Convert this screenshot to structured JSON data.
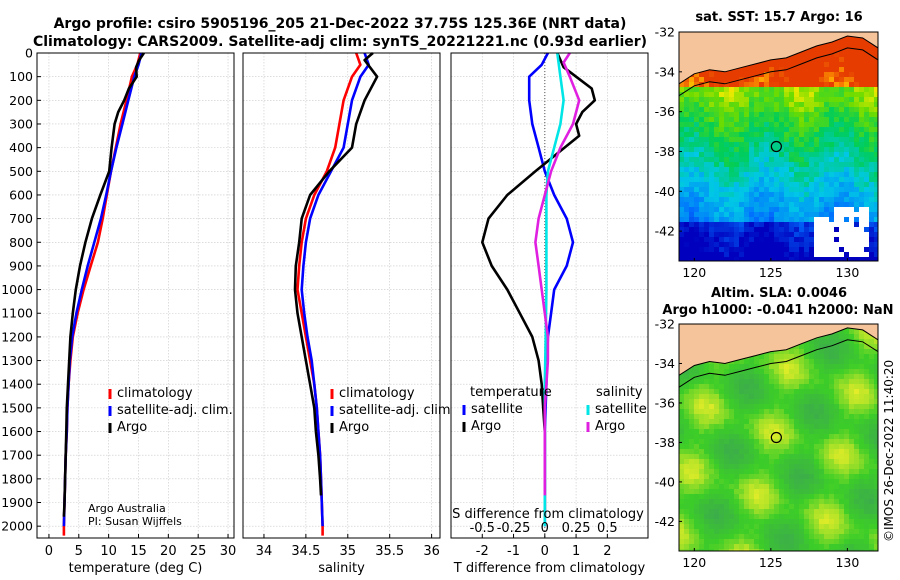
{
  "header": {
    "line1": "Argo profile: csiro 5905196_205 21-Dec-2022 37.75S 125.36E (NRT data)",
    "line2": "Climatology: CARS2009. Satellite-adj clim: synTS_20221221.nc (0.93d earlier)"
  },
  "credits": {
    "org": "Argo Australia",
    "pi": "PI: Susan Wijffels",
    "copyright": "©IMOS 26-Dec-2022 11:40:20"
  },
  "colors": {
    "climatology": "#ff0000",
    "satellite": "#0000ff",
    "argo": "#000000",
    "sal_sat": "#00e5e5",
    "sal_argo": "#e020e0",
    "land": "#f5c49a"
  },
  "chart_data": [
    {
      "type": "line",
      "id": "temperature",
      "xlabel": "temperature (deg C)",
      "xlim": [
        -2,
        31
      ],
      "xticks": [
        0,
        5,
        10,
        15,
        20,
        25,
        30
      ],
      "ylim": [
        0,
        2050
      ],
      "yticks": [
        0,
        100,
        200,
        300,
        400,
        500,
        600,
        700,
        800,
        900,
        1000,
        1100,
        1200,
        1300,
        1400,
        1500,
        1600,
        1700,
        1800,
        1900,
        2000
      ],
      "yreverse": true,
      "legend": [
        "climatology",
        "satellite-adj. clim.",
        "Argo"
      ],
      "series": [
        {
          "name": "climatology",
          "color": "#ff0000",
          "points": [
            [
              15.3,
              0
            ],
            [
              14.8,
              50
            ],
            [
              13.9,
              100
            ],
            [
              13.0,
              200
            ],
            [
              12.0,
              300
            ],
            [
              11.2,
              400
            ],
            [
              10.4,
              500
            ],
            [
              9.7,
              600
            ],
            [
              9.0,
              700
            ],
            [
              8.2,
              800
            ],
            [
              7.0,
              900
            ],
            [
              5.8,
              1000
            ],
            [
              4.8,
              1100
            ],
            [
              4.0,
              1200
            ],
            [
              3.6,
              1300
            ],
            [
              3.3,
              1400
            ],
            [
              3.1,
              1500
            ],
            [
              3.0,
              1600
            ],
            [
              2.8,
              1700
            ],
            [
              2.7,
              1800
            ],
            [
              2.6,
              1900
            ],
            [
              2.5,
              2000
            ],
            [
              2.5,
              2040
            ]
          ]
        },
        {
          "name": "satellite-adj. clim.",
          "color": "#0000ff",
          "points": [
            [
              15.5,
              0
            ],
            [
              15.0,
              50
            ],
            [
              14.3,
              100
            ],
            [
              13.3,
              200
            ],
            [
              12.3,
              300
            ],
            [
              11.3,
              400
            ],
            [
              10.4,
              500
            ],
            [
              9.6,
              600
            ],
            [
              8.7,
              700
            ],
            [
              7.6,
              800
            ],
            [
              6.5,
              900
            ],
            [
              5.5,
              1000
            ],
            [
              4.6,
              1100
            ],
            [
              3.9,
              1200
            ],
            [
              3.5,
              1300
            ],
            [
              3.3,
              1400
            ],
            [
              3.1,
              1500
            ],
            [
              3.0,
              1600
            ],
            [
              2.8,
              1700
            ],
            [
              2.7,
              1800
            ],
            [
              2.6,
              1900
            ],
            [
              2.5,
              2000
            ]
          ]
        },
        {
          "name": "Argo",
          "color": "#000000",
          "points": [
            [
              15.9,
              0
            ],
            [
              15.1,
              30
            ],
            [
              14.6,
              60
            ],
            [
              14.7,
              100
            ],
            [
              13.4,
              150
            ],
            [
              12.6,
              200
            ],
            [
              11.6,
              250
            ],
            [
              11.0,
              300
            ],
            [
              10.5,
              400
            ],
            [
              10.1,
              500
            ],
            [
              8.6,
              600
            ],
            [
              7.2,
              700
            ],
            [
              6.1,
              800
            ],
            [
              5.2,
              900
            ],
            [
              4.5,
              1000
            ],
            [
              4.0,
              1100
            ],
            [
              3.6,
              1200
            ],
            [
              3.4,
              1300
            ],
            [
              3.2,
              1400
            ],
            [
              3.0,
              1500
            ],
            [
              2.9,
              1600
            ],
            [
              2.8,
              1700
            ],
            [
              2.7,
              1800
            ],
            [
              2.6,
              1900
            ],
            [
              2.5,
              1960
            ]
          ]
        }
      ]
    },
    {
      "type": "line",
      "id": "salinity",
      "xlabel": "salinity",
      "xlim": [
        33.75,
        36.1
      ],
      "xticks": [
        34,
        34.5,
        35,
        35.5,
        36
      ],
      "ylim": [
        0,
        2050
      ],
      "yreverse": true,
      "legend": [
        "climatology",
        "satellite-adj. clim.",
        "Argo"
      ],
      "series": [
        {
          "name": "climatology",
          "color": "#ff0000",
          "points": [
            [
              35.1,
              0
            ],
            [
              35.15,
              50
            ],
            [
              35.05,
              100
            ],
            [
              34.95,
              200
            ],
            [
              34.9,
              300
            ],
            [
              34.85,
              400
            ],
            [
              34.75,
              500
            ],
            [
              34.6,
              600
            ],
            [
              34.5,
              700
            ],
            [
              34.45,
              800
            ],
            [
              34.42,
              900
            ],
            [
              34.4,
              1000
            ],
            [
              34.45,
              1100
            ],
            [
              34.5,
              1200
            ],
            [
              34.55,
              1300
            ],
            [
              34.6,
              1400
            ],
            [
              34.63,
              1500
            ],
            [
              34.65,
              1600
            ],
            [
              34.67,
              1700
            ],
            [
              34.68,
              1800
            ],
            [
              34.69,
              1900
            ],
            [
              34.7,
              2000
            ],
            [
              34.7,
              2040
            ]
          ]
        },
        {
          "name": "satellite-adj. clim.",
          "color": "#0000ff",
          "points": [
            [
              35.2,
              0
            ],
            [
              35.25,
              50
            ],
            [
              35.15,
              100
            ],
            [
              35.05,
              200
            ],
            [
              35.0,
              300
            ],
            [
              34.95,
              400
            ],
            [
              34.8,
              500
            ],
            [
              34.65,
              600
            ],
            [
              34.55,
              700
            ],
            [
              34.5,
              800
            ],
            [
              34.47,
              900
            ],
            [
              34.45,
              1000
            ],
            [
              34.48,
              1100
            ],
            [
              34.52,
              1200
            ],
            [
              34.57,
              1300
            ],
            [
              34.6,
              1400
            ],
            [
              34.63,
              1500
            ],
            [
              34.65,
              1600
            ],
            [
              34.67,
              1700
            ],
            [
              34.68,
              1800
            ],
            [
              34.69,
              1900
            ],
            [
              34.7,
              2000
            ]
          ]
        },
        {
          "name": "Argo",
          "color": "#000000",
          "points": [
            [
              35.3,
              0
            ],
            [
              35.2,
              30
            ],
            [
              35.35,
              100
            ],
            [
              35.2,
              200
            ],
            [
              35.1,
              300
            ],
            [
              35.05,
              400
            ],
            [
              34.78,
              500
            ],
            [
              34.55,
              600
            ],
            [
              34.45,
              700
            ],
            [
              34.42,
              800
            ],
            [
              34.38,
              900
            ],
            [
              34.37,
              1000
            ],
            [
              34.4,
              1100
            ],
            [
              34.45,
              1200
            ],
            [
              34.5,
              1300
            ],
            [
              34.55,
              1400
            ],
            [
              34.6,
              1500
            ],
            [
              34.62,
              1600
            ],
            [
              34.65,
              1700
            ],
            [
              34.67,
              1800
            ],
            [
              34.68,
              1870
            ]
          ]
        }
      ]
    },
    {
      "type": "line",
      "id": "difference",
      "xlabel": "T difference from climatology",
      "x2label": "S difference from climatology",
      "xlim": [
        -3,
        3.3
      ],
      "xticks": [
        -2,
        -1,
        0,
        1,
        2
      ],
      "x2ticks": [
        -0.5,
        -0.25,
        0,
        0.25,
        0.5
      ],
      "x2tick_labels": [
        "-0.5",
        "-0.25",
        "0",
        "0.25",
        "0.5"
      ],
      "x2_scale": 4,
      "ylim": [
        0,
        2050
      ],
      "yreverse": true,
      "legend_temperature_title": "temperature",
      "legend_salinity_title": "salinity",
      "legend_temperature": [
        "satellite",
        "Argo"
      ],
      "legend_salinity": [
        "satellite",
        "Argo"
      ],
      "series": [
        {
          "name": "T satellite",
          "color": "#0000ff",
          "points": [
            [
              0.1,
              0
            ],
            [
              -0.1,
              50
            ],
            [
              -0.5,
              100
            ],
            [
              -0.5,
              200
            ],
            [
              -0.4,
              300
            ],
            [
              -0.2,
              400
            ],
            [
              0,
              500
            ],
            [
              0.3,
              600
            ],
            [
              0.7,
              700
            ],
            [
              0.9,
              800
            ],
            [
              0.7,
              900
            ],
            [
              0.3,
              1000
            ],
            [
              0.2,
              1100
            ],
            [
              0.1,
              1200
            ],
            [
              0.05,
              1400
            ],
            [
              0,
              1600
            ],
            [
              0,
              1800
            ],
            [
              0,
              2000
            ]
          ]
        },
        {
          "name": "T Argo",
          "color": "#000000",
          "points": [
            [
              0.4,
              0
            ],
            [
              0.6,
              60
            ],
            [
              1.0,
              100
            ],
            [
              1.5,
              150
            ],
            [
              1.6,
              200
            ],
            [
              1.2,
              250
            ],
            [
              1.0,
              300
            ],
            [
              1.1,
              350
            ],
            [
              -0.3,
              500
            ],
            [
              -1.2,
              600
            ],
            [
              -1.8,
              700
            ],
            [
              -2.0,
              800
            ],
            [
              -1.7,
              900
            ],
            [
              -1.2,
              1000
            ],
            [
              -0.8,
              1100
            ],
            [
              -0.4,
              1200
            ],
            [
              -0.2,
              1300
            ],
            [
              -0.1,
              1400
            ],
            [
              -0.05,
              1500
            ],
            [
              0,
              1600
            ],
            [
              0,
              1800
            ],
            [
              0,
              1960
            ]
          ]
        },
        {
          "name": "S satellite",
          "color": "#00e5e5",
          "points": [
            [
              0.4,
              0
            ],
            [
              0.5,
              100
            ],
            [
              0.6,
              200
            ],
            [
              0.5,
              300
            ],
            [
              0.3,
              400
            ],
            [
              0.1,
              500
            ],
            [
              0.05,
              600
            ],
            [
              0.05,
              800
            ],
            [
              0.05,
              1000
            ],
            [
              0.03,
              1200
            ],
            [
              0,
              1400
            ],
            [
              0,
              1600
            ],
            [
              0,
              1800
            ],
            [
              0,
              2000
            ]
          ]
        },
        {
          "name": "S Argo",
          "color": "#e020e0",
          "points": [
            [
              0.8,
              0
            ],
            [
              0.6,
              40
            ],
            [
              0.8,
              100
            ],
            [
              1.1,
              200
            ],
            [
              0.9,
              300
            ],
            [
              0.5,
              400
            ],
            [
              0.2,
              500
            ],
            [
              0,
              600
            ],
            [
              -0.2,
              700
            ],
            [
              -0.3,
              800
            ],
            [
              -0.2,
              900
            ],
            [
              -0.1,
              1000
            ],
            [
              0,
              1100
            ],
            [
              0.1,
              1200
            ],
            [
              0.1,
              1300
            ],
            [
              0.05,
              1400
            ],
            [
              0,
              1500
            ],
            [
              0,
              1700
            ],
            [
              0,
              1870
            ]
          ]
        }
      ]
    },
    {
      "type": "heatmap",
      "id": "sst_map",
      "title": "sat. SST: 15.7 Argo: 16",
      "xlim": [
        119,
        132
      ],
      "ylim": [
        -43.5,
        -32
      ],
      "xticks": [
        120,
        125,
        130
      ],
      "yticks": [
        -32,
        -34,
        -36,
        -38,
        -40,
        -42
      ],
      "marker": [
        125.36,
        -37.75
      ]
    },
    {
      "type": "heatmap",
      "id": "sla_map",
      "title1": "Altim. SLA: 0.0046",
      "title2": "Argo h1000: -0.041 h2000: NaN",
      "xlim": [
        119,
        132
      ],
      "ylim": [
        -43.5,
        -32
      ],
      "xticks": [
        120,
        125,
        130
      ],
      "yticks": [
        -32,
        -34,
        -36,
        -38,
        -40,
        -42
      ],
      "marker": [
        125.36,
        -37.75
      ]
    }
  ]
}
